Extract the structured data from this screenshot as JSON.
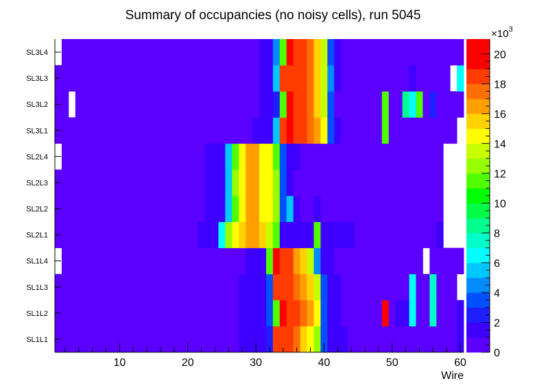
{
  "chart_data": {
    "type": "heatmap",
    "title": "Summary of occupancies (no noisy cells), run 5045",
    "xlabel": "Wire",
    "xlim": [
      0.5,
      60.5
    ],
    "x_ticks": [
      10,
      20,
      30,
      40,
      50,
      60
    ],
    "x_tick_labels": [
      "10",
      "20",
      "30",
      "40",
      "50",
      "60"
    ],
    "y_categories": [
      "SL1L1",
      "SL1L2",
      "SL1L3",
      "SL1L4",
      "SL2L1",
      "SL2L2",
      "SL2L3",
      "SL2L4",
      "SL3L1",
      "SL3L2",
      "SL3L3",
      "SL3L4"
    ],
    "zlim": [
      0,
      21
    ],
    "z_ticks": [
      0,
      2,
      4,
      6,
      8,
      10,
      12,
      14,
      16,
      18,
      20
    ],
    "z_tick_labels": [
      "0",
      "2",
      "4",
      "6",
      "8",
      "10",
      "12",
      "14",
      "16",
      "18",
      "20"
    ],
    "z_multiplier": "×10",
    "z_multiplier_exp": "3",
    "palette": [
      "#5b00ff",
      "#3d00ff",
      "#1e1eff",
      "#0050ff",
      "#008cff",
      "#00c8ff",
      "#00ffff",
      "#00ffc8",
      "#00ff8c",
      "#00ff46",
      "#00ff00",
      "#50ff00",
      "#96ff00",
      "#c8ff00",
      "#ffff00",
      "#ffd200",
      "#ffa000",
      "#ff6e00",
      "#ff3c00",
      "#ff0000",
      "#ff0000"
    ],
    "rows": [
      {
        "label": "SL1L1",
        "default": 0.5,
        "runs": [
          [
            28,
            31,
            1.5
          ],
          [
            32,
            32,
            2.5
          ],
          [
            33,
            35,
            18.5
          ],
          [
            36,
            36,
            17
          ],
          [
            37,
            37,
            15.5
          ],
          [
            38,
            38,
            14
          ],
          [
            39,
            39,
            12
          ],
          [
            40,
            40,
            3
          ],
          [
            41,
            43,
            1.5
          ],
          [
            60,
            60,
            1.5
          ],
          [
            61,
            61,
            null
          ]
        ]
      },
      {
        "label": "SL1L2",
        "default": 0.5,
        "runs": [
          [
            28,
            31,
            1.5
          ],
          [
            32,
            32,
            3
          ],
          [
            33,
            33,
            11.5
          ],
          [
            34,
            34,
            19.5
          ],
          [
            35,
            36,
            18.5
          ],
          [
            37,
            37,
            17
          ],
          [
            38,
            38,
            16
          ],
          [
            39,
            39,
            14.5
          ],
          [
            40,
            40,
            3
          ],
          [
            41,
            42,
            1.5
          ],
          [
            49,
            49,
            19.5
          ],
          [
            51,
            52,
            1.5
          ],
          [
            53,
            53,
            6
          ],
          [
            56,
            56,
            7
          ],
          [
            60,
            60,
            1.5
          ]
        ]
      },
      {
        "label": "SL1L3",
        "default": 0.5,
        "runs": [
          [
            28,
            31,
            1.5
          ],
          [
            32,
            32,
            3
          ],
          [
            33,
            35,
            18.5
          ],
          [
            36,
            36,
            17
          ],
          [
            37,
            37,
            16
          ],
          [
            38,
            38,
            15
          ],
          [
            39,
            39,
            13
          ],
          [
            40,
            40,
            3
          ],
          [
            41,
            42,
            1.5
          ],
          [
            53,
            53,
            6.5
          ],
          [
            56,
            56,
            7
          ],
          [
            60,
            60,
            null
          ]
        ]
      },
      {
        "label": "SL1L4",
        "default": 0.5,
        "runs": [
          [
            1,
            1,
            null
          ],
          [
            29,
            31,
            1.5
          ],
          [
            32,
            32,
            11
          ],
          [
            33,
            33,
            19
          ],
          [
            34,
            35,
            18
          ],
          [
            36,
            36,
            16.5
          ],
          [
            37,
            37,
            15
          ],
          [
            38,
            38,
            13
          ],
          [
            39,
            39,
            4
          ],
          [
            40,
            41,
            1.5
          ],
          [
            55,
            55,
            null
          ]
        ]
      },
      {
        "label": "SL2L1",
        "default": 0.5,
        "runs": [
          [
            22,
            24,
            1.5
          ],
          [
            25,
            25,
            6
          ],
          [
            26,
            26,
            12
          ],
          [
            27,
            27,
            14
          ],
          [
            28,
            28,
            15.5
          ],
          [
            29,
            30,
            16.5
          ],
          [
            31,
            31,
            15
          ],
          [
            32,
            32,
            13
          ],
          [
            33,
            33,
            11.5
          ],
          [
            34,
            34,
            1.5
          ],
          [
            35,
            38,
            1.5
          ],
          [
            39,
            39,
            11.5
          ],
          [
            40,
            44,
            1.5
          ],
          [
            57,
            57,
            1.5
          ],
          [
            58,
            60,
            null
          ]
        ]
      },
      {
        "label": "SL2L2",
        "default": 0.5,
        "runs": [
          [
            23,
            25,
            1.5
          ],
          [
            26,
            26,
            5
          ],
          [
            27,
            27,
            11.5
          ],
          [
            28,
            28,
            14
          ],
          [
            29,
            30,
            16
          ],
          [
            31,
            32,
            14
          ],
          [
            33,
            33,
            12
          ],
          [
            34,
            34,
            3.5
          ],
          [
            35,
            35,
            5.5
          ],
          [
            36,
            36,
            1.5
          ],
          [
            39,
            39,
            1.5
          ],
          [
            58,
            60,
            null
          ]
        ]
      },
      {
        "label": "SL2L3",
        "default": 0.5,
        "runs": [
          [
            23,
            25,
            1.5
          ],
          [
            26,
            26,
            5
          ],
          [
            27,
            27,
            12
          ],
          [
            28,
            28,
            14
          ],
          [
            29,
            30,
            16
          ],
          [
            31,
            32,
            14
          ],
          [
            33,
            33,
            12.5
          ],
          [
            34,
            34,
            3.5
          ],
          [
            35,
            35,
            1.5
          ],
          [
            58,
            60,
            null
          ]
        ]
      },
      {
        "label": "SL2L4",
        "default": 0.5,
        "runs": [
          [
            1,
            1,
            null
          ],
          [
            23,
            25,
            1.5
          ],
          [
            26,
            26,
            5
          ],
          [
            27,
            27,
            11.5
          ],
          [
            28,
            28,
            14
          ],
          [
            29,
            30,
            16
          ],
          [
            31,
            32,
            14
          ],
          [
            33,
            33,
            11.5
          ],
          [
            34,
            34,
            3.5
          ],
          [
            35,
            36,
            1.5
          ],
          [
            58,
            60,
            null
          ]
        ]
      },
      {
        "label": "SL3L1",
        "default": 0.5,
        "runs": [
          [
            30,
            32,
            1.5
          ],
          [
            33,
            33,
            5
          ],
          [
            34,
            34,
            18.5
          ],
          [
            35,
            35,
            19.5
          ],
          [
            36,
            37,
            18.5
          ],
          [
            38,
            38,
            17
          ],
          [
            39,
            39,
            16
          ],
          [
            40,
            40,
            14
          ],
          [
            41,
            41,
            3
          ],
          [
            42,
            42,
            1.5
          ],
          [
            49,
            49,
            11.5
          ],
          [
            60,
            60,
            null
          ]
        ]
      },
      {
        "label": "SL3L2",
        "default": 0.5,
        "runs": [
          [
            3,
            3,
            null
          ],
          [
            31,
            32,
            1.5
          ],
          [
            33,
            33,
            2.5
          ],
          [
            34,
            34,
            11.5
          ],
          [
            35,
            35,
            19.5
          ],
          [
            36,
            37,
            18.5
          ],
          [
            38,
            38,
            17
          ],
          [
            39,
            39,
            15.5
          ],
          [
            40,
            40,
            13.5
          ],
          [
            41,
            41,
            3
          ],
          [
            49,
            49,
            11.5
          ],
          [
            52,
            52,
            8
          ],
          [
            53,
            53,
            6
          ],
          [
            54,
            54,
            11.5
          ],
          [
            56,
            56,
            2.5
          ]
        ]
      },
      {
        "label": "SL3L3",
        "default": 0.5,
        "runs": [
          [
            31,
            32,
            1.5
          ],
          [
            33,
            33,
            5
          ],
          [
            34,
            37,
            18.5
          ],
          [
            38,
            38,
            17
          ],
          [
            39,
            39,
            15.5
          ],
          [
            40,
            40,
            13.5
          ],
          [
            41,
            41,
            4
          ],
          [
            42,
            42,
            1.5
          ],
          [
            53,
            53,
            1.5
          ],
          [
            59,
            59,
            null
          ],
          [
            60,
            60,
            6
          ]
        ]
      },
      {
        "label": "SL3L4",
        "default": 0.5,
        "runs": [
          [
            1,
            1,
            null
          ],
          [
            31,
            32,
            1.5
          ],
          [
            33,
            33,
            4
          ],
          [
            34,
            34,
            11.5
          ],
          [
            35,
            35,
            19.5
          ],
          [
            36,
            37,
            18.5
          ],
          [
            38,
            38,
            17
          ],
          [
            39,
            39,
            15.5
          ],
          [
            40,
            40,
            13.5
          ],
          [
            41,
            41,
            3
          ],
          [
            42,
            42,
            1.5
          ]
        ]
      }
    ]
  }
}
